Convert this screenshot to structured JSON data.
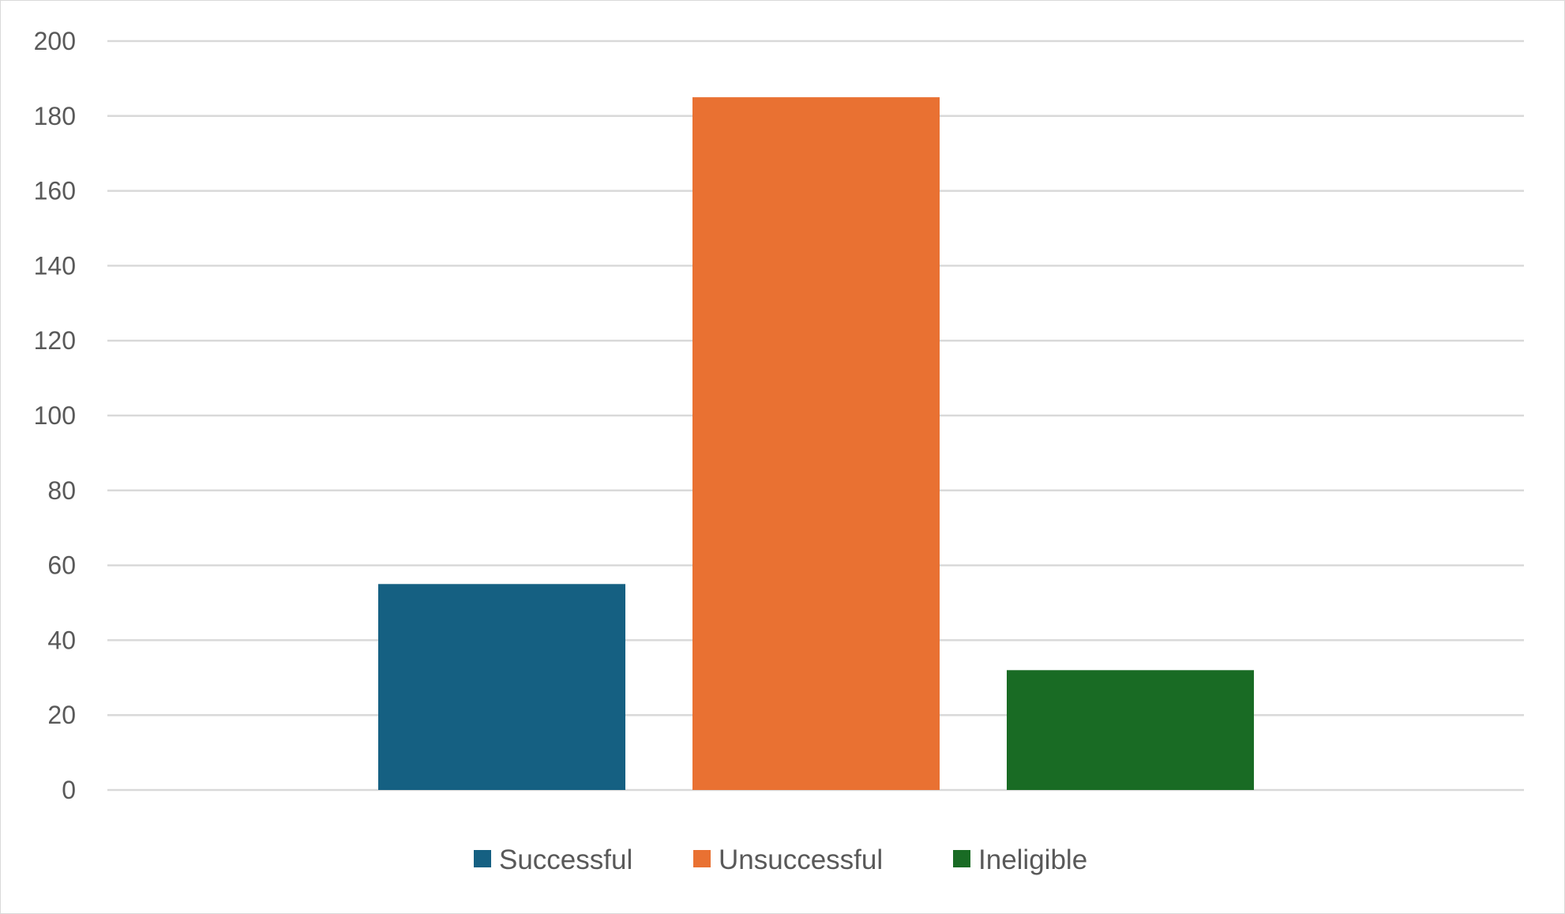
{
  "chart_data": {
    "type": "bar",
    "title": "",
    "xlabel": "",
    "ylabel": "",
    "ylim": [
      0,
      200
    ],
    "y_ticks": [
      "0",
      "20",
      "40",
      "60",
      "80",
      "100",
      "120",
      "140",
      "160",
      "180",
      "200"
    ],
    "grid": true,
    "legend_position": "bottom",
    "series": [
      {
        "name": "Successful",
        "values": [
          55
        ],
        "color": "#156082"
      },
      {
        "name": "Unsuccessful",
        "values": [
          185
        ],
        "color": "#E97132"
      },
      {
        "name": "Ineligible",
        "values": [
          32
        ],
        "color": "#196B24"
      }
    ]
  }
}
